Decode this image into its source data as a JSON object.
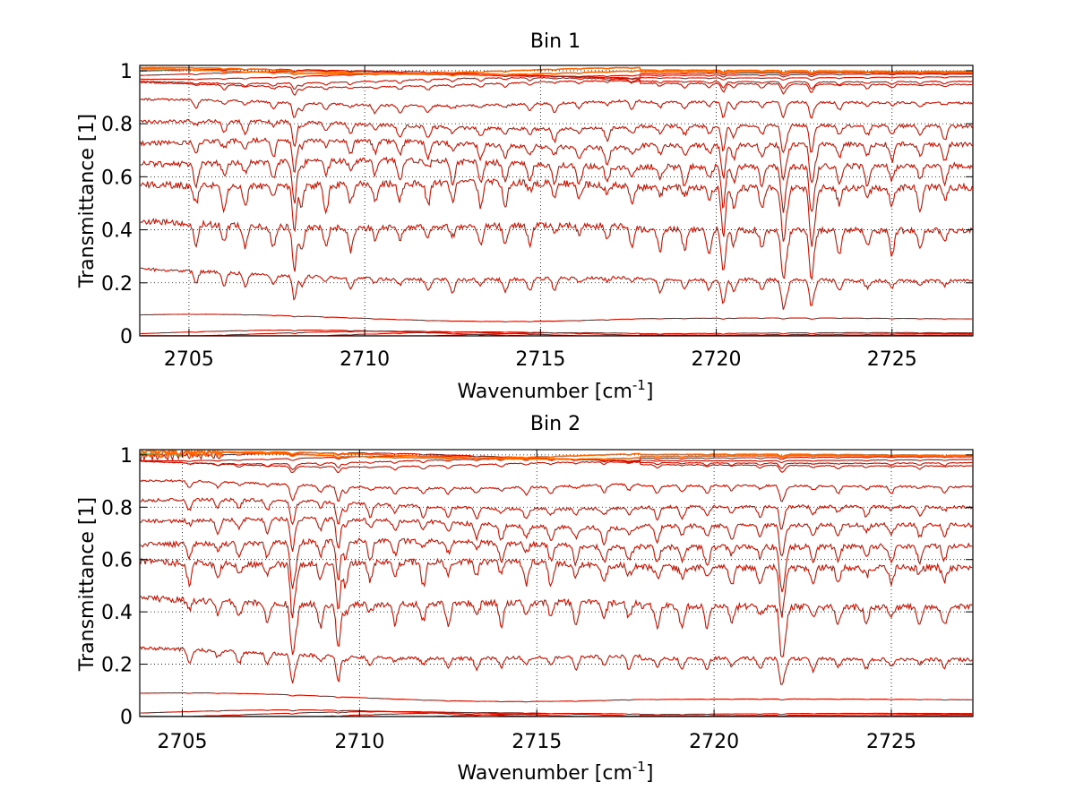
{
  "chart_data": [
    {
      "type": "line",
      "title": "Bin 1",
      "xlabel": "Wavenumber [cm",
      "xlabel_sup": "-1",
      "xlabel_end": "]",
      "ylabel": "Transmittance [1]",
      "xlim": [
        2703.6,
        2727.3
      ],
      "ylim": [
        0,
        1.02
      ],
      "xticks": [
        2705,
        2710,
        2715,
        2720,
        2725
      ],
      "yticks": [
        0,
        0.2,
        0.4,
        0.6,
        0.8,
        1
      ],
      "ytick_labels": [
        "0",
        "0.2",
        "0.4",
        "0.6",
        "0.8",
        "1"
      ],
      "grid": true,
      "series_levels": [
        0.0,
        0.003,
        0.006,
        0.01,
        0.06,
        0.21,
        0.4,
        0.56,
        0.63,
        0.71,
        0.78,
        0.87,
        0.94,
        0.96,
        0.975,
        0.985,
        0.99,
        0.995,
        1.0
      ],
      "series_start_levels": [
        0.0,
        0.003,
        0.006,
        0.01,
        0.07,
        0.24,
        0.43,
        0.58,
        0.66,
        0.73,
        0.8,
        0.88,
        0.95,
        0.965,
        0.98,
        0.99,
        0.995,
        1.0,
        1.0
      ],
      "series_end_levels": [
        0.0,
        0.003,
        0.006,
        0.01,
        0.065,
        0.21,
        0.4,
        0.56,
        0.64,
        0.72,
        0.79,
        0.88,
        0.95,
        0.96,
        0.975,
        0.985,
        0.99,
        0.995,
        1.0
      ],
      "absorption_lines": [
        2705.2,
        2706.0,
        2706.6,
        2707.4,
        2708.2,
        2708.9,
        2709.6,
        2710.3,
        2711.0,
        2711.8,
        2712.5,
        2713.3,
        2714.0,
        2714.7,
        2715.4,
        2716.1,
        2716.9,
        2717.6,
        2718.4,
        2719.1,
        2719.8,
        2720.5,
        2721.3,
        2722.0,
        2722.8,
        2723.5,
        2724.3,
        2725.0,
        2725.8,
        2726.5
      ],
      "strong_lines": [
        2721.9,
        2722.7,
        2720.2,
        2708.0
      ],
      "colors": {
        "line": "#cc1100",
        "top_line": "#ff6600",
        "top_accent": "#33aa66"
      }
    },
    {
      "type": "line",
      "title": "Bin 2",
      "xlabel": "Wavenumber [cm",
      "xlabel_sup": "-1",
      "xlabel_end": "]",
      "ylabel": "Transmittance [1]",
      "xlim": [
        2703.8,
        2727.3
      ],
      "ylim": [
        0,
        1.02
      ],
      "xticks": [
        2705,
        2710,
        2715,
        2720,
        2725
      ],
      "yticks": [
        0,
        0.2,
        0.4,
        0.6,
        0.8,
        1
      ],
      "ytick_labels": [
        "0",
        "0.2",
        "0.4",
        "0.6",
        "0.8",
        "1"
      ],
      "grid": true,
      "series_levels": [
        0.0,
        0.003,
        0.006,
        0.01,
        0.065,
        0.22,
        0.41,
        0.57,
        0.65,
        0.73,
        0.8,
        0.88,
        0.96,
        0.97,
        0.98,
        0.99,
        0.995,
        1.0
      ],
      "series_start_levels": [
        0.0,
        0.003,
        0.008,
        0.015,
        0.08,
        0.25,
        0.45,
        0.6,
        0.67,
        0.75,
        0.82,
        0.89,
        0.97,
        0.98,
        0.99,
        1.0,
        1.0,
        1.0
      ],
      "series_end_levels": [
        0.0,
        0.003,
        0.006,
        0.01,
        0.065,
        0.22,
        0.42,
        0.57,
        0.65,
        0.73,
        0.8,
        0.88,
        0.96,
        0.97,
        0.98,
        0.99,
        0.995,
        1.0
      ],
      "absorption_lines": [
        2705.2,
        2706.0,
        2706.6,
        2707.4,
        2708.2,
        2708.9,
        2709.6,
        2710.3,
        2711.0,
        2711.8,
        2712.5,
        2713.3,
        2714.0,
        2714.7,
        2715.4,
        2716.1,
        2716.9,
        2717.6,
        2718.4,
        2719.1,
        2719.8,
        2720.5,
        2721.3,
        2722.0,
        2722.8,
        2723.5,
        2724.3,
        2725.0,
        2725.8,
        2726.5
      ],
      "strong_lines": [
        2721.9,
        2709.4,
        2708.1
      ],
      "colors": {
        "line": "#cc1100",
        "top_line": "#ff6600",
        "top_accent": "#33aa66"
      }
    }
  ]
}
